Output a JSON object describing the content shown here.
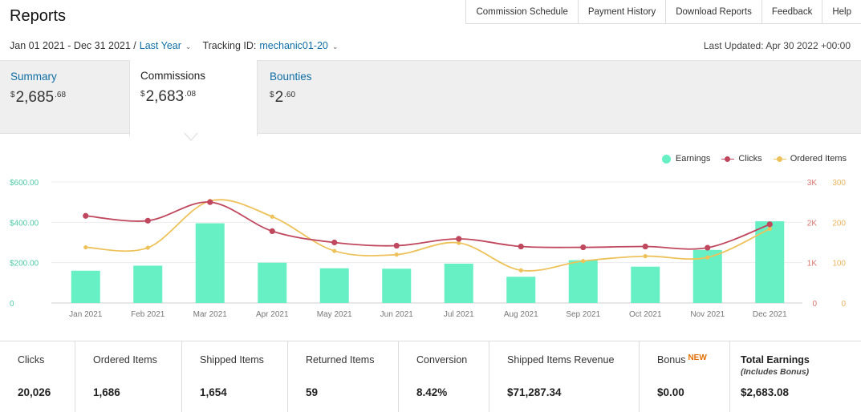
{
  "page_title": "Reports",
  "top_nav": [
    "Commission Schedule",
    "Payment History",
    "Download Reports",
    "Feedback",
    "Help"
  ],
  "filters": {
    "date_range": "Jan 01 2021 - Dec 31 2021 /",
    "period": "Last Year",
    "tracking_label": "Tracking ID:",
    "tracking_id": "mechanic01-20"
  },
  "last_updated": "Last Updated: Apr 30 2022 +00:00",
  "tabs": [
    {
      "label": "Summary",
      "currency": "$",
      "whole": "2,685",
      "cents": ".68"
    },
    {
      "label": "Commissions",
      "currency": "$",
      "whole": "2,683",
      "cents": ".08"
    },
    {
      "label": "Bounties",
      "currency": "$",
      "whole": "2",
      "cents": ".60"
    }
  ],
  "legend": {
    "earnings": "Earnings",
    "clicks": "Clicks",
    "ordered_items": "Ordered Items"
  },
  "colors": {
    "earnings": "#66f0c3",
    "clicks": "#c0485e",
    "ordered_items": "#eec25a",
    "link": "#0f6fa5",
    "left_axis": "#4fcaa5",
    "right_axis_1": "#d9766f",
    "right_axis_2": "#e7b45d",
    "new_badge": "#e46f00"
  },
  "chart_data": {
    "type": "bar",
    "categories": [
      "Jan 2021",
      "Feb 2021",
      "Mar 2021",
      "Apr 2021",
      "May 2021",
      "Jun 2021",
      "Jul 2021",
      "Aug 2021",
      "Sep 2021",
      "Oct 2021",
      "Nov 2021",
      "Dec 2021"
    ],
    "series": [
      {
        "name": "Earnings",
        "type": "bar",
        "axis": "left",
        "values": [
          160,
          185,
          395,
          200,
          172,
          170,
          195,
          130,
          212,
          180,
          263,
          405
        ]
      },
      {
        "name": "Clicks",
        "type": "line",
        "axis": "right1",
        "values": [
          2160,
          2040,
          2500,
          1780,
          1500,
          1420,
          1590,
          1400,
          1380,
          1400,
          1370,
          1950
        ]
      },
      {
        "name": "Ordered Items",
        "type": "line",
        "axis": "right2",
        "values": [
          138,
          137,
          253,
          214,
          129,
          120,
          149,
          81,
          104,
          116,
          113,
          184
        ]
      }
    ],
    "y_left": {
      "range": [
        0,
        600
      ],
      "ticks": [
        "0",
        "$200.00",
        "$400.00",
        "$600.00"
      ]
    },
    "y_right1": {
      "range": [
        0,
        3000
      ],
      "ticks": [
        "0",
        "1K",
        "2K",
        "3K"
      ]
    },
    "y_right2": {
      "range": [
        0,
        300
      ],
      "ticks": [
        "0",
        "100",
        "200",
        "300"
      ]
    },
    "grid": true,
    "legend_position": "top-right"
  },
  "stats": [
    {
      "label": "Clicks",
      "value": "20,026"
    },
    {
      "label": "Ordered Items",
      "value": "1,686"
    },
    {
      "label": "Shipped Items",
      "value": "1,654"
    },
    {
      "label": "Returned Items",
      "value": "59"
    },
    {
      "label": "Conversion",
      "value": "8.42%"
    },
    {
      "label": "Shipped Items Revenue",
      "value": "$71,287.34"
    },
    {
      "label": "Bonus",
      "badge": "NEW",
      "value": "$0.00"
    },
    {
      "label": "Total Earnings",
      "sublabel": "(Includes Bonus)",
      "value": "$2,683.08"
    }
  ]
}
